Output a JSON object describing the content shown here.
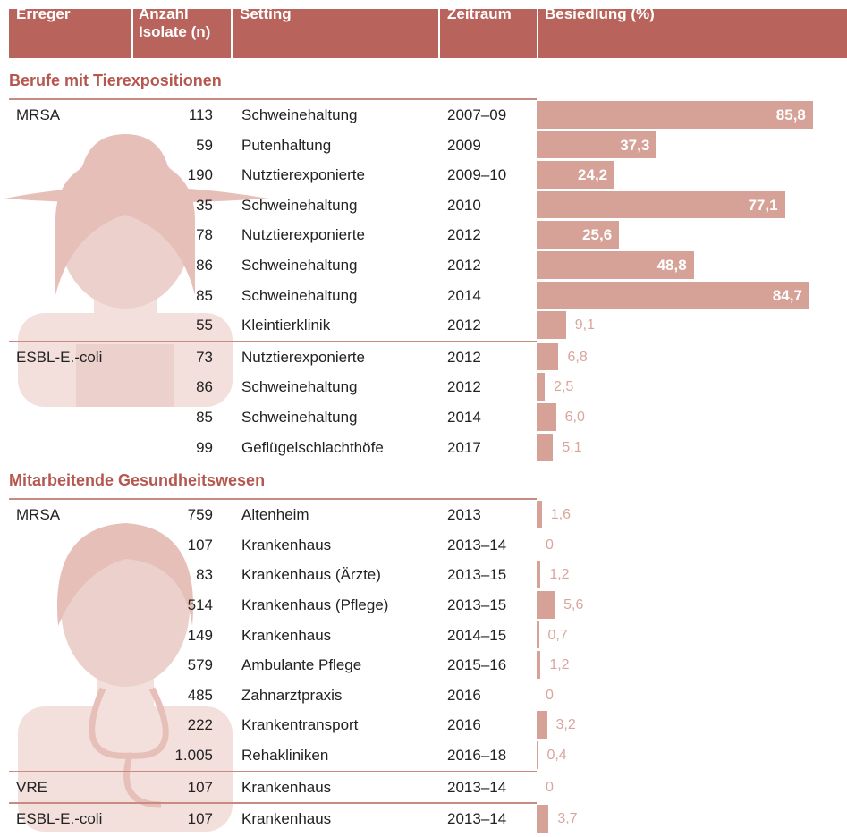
{
  "table": {
    "columns": [
      "Erreger",
      "Anzahl Isolate (n)",
      "Setting",
      "Zeitraum",
      "Besiedlung  (%)"
    ],
    "sections": [
      {
        "title": "Berufe mit Tierexpositionen",
        "groups": [
          {
            "pathogen": "MRSA",
            "rows": [
              {
                "n": "113",
                "setting": "Schweinehaltung",
                "period": "2007–09",
                "value": 85.8,
                "value_label": "85,8"
              },
              {
                "n": "59",
                "setting": "Putenhaltung",
                "period": "2009",
                "value": 37.3,
                "value_label": "37,3"
              },
              {
                "n": "190",
                "setting": "Nutztierexponierte",
                "period": "2009–10",
                "value": 24.2,
                "value_label": "24,2"
              },
              {
                "n": "35",
                "setting": "Schweinehaltung",
                "period": "2010",
                "value": 77.1,
                "value_label": "77,1"
              },
              {
                "n": "78",
                "setting": "Nutztierexponierte",
                "period": "2012",
                "value": 25.6,
                "value_label": "25,6"
              },
              {
                "n": "86",
                "setting": "Schweinehaltung",
                "period": "2012",
                "value": 48.8,
                "value_label": "48,8"
              },
              {
                "n": "85",
                "setting": "Schweinehaltung",
                "period": "2014",
                "value": 84.7,
                "value_label": "84,7"
              },
              {
                "n": "55",
                "setting": "Kleintierklinik",
                "period": "2012",
                "value": 9.1,
                "value_label": "9,1"
              }
            ]
          },
          {
            "pathogen": "ESBL-E.-coli",
            "rows": [
              {
                "n": "73",
                "setting": "Nutztierexponierte",
                "period": "2012",
                "value": 6.8,
                "value_label": "6,8"
              },
              {
                "n": "86",
                "setting": "Schweinehaltung",
                "period": "2012",
                "value": 2.5,
                "value_label": "2,5"
              },
              {
                "n": "85",
                "setting": "Schweinehaltung",
                "period": "2014",
                "value": 6.0,
                "value_label": "6,0"
              },
              {
                "n": "99",
                "setting": "Geflügelschlachthöfe",
                "period": "2017",
                "value": 5.1,
                "value_label": "5,1"
              }
            ]
          }
        ]
      },
      {
        "title": "Mitarbeitende Gesundheitswesen",
        "groups": [
          {
            "pathogen": "MRSA",
            "rows": [
              {
                "n": "759",
                "setting": "Altenheim",
                "period": "2013",
                "value": 1.6,
                "value_label": "1,6"
              },
              {
                "n": "107",
                "setting": "Krankenhaus",
                "period": "2013–14",
                "value": 0,
                "value_label": "0"
              },
              {
                "n": "83",
                "setting": "Krankenhaus (Ärzte)",
                "period": "2013–15",
                "value": 1.2,
                "value_label": "1,2"
              },
              {
                "n": "514",
                "setting": "Krankenhaus (Pflege)",
                "period": "2013–15",
                "value": 5.6,
                "value_label": "5,6"
              },
              {
                "n": "149",
                "setting": "Krankenhaus",
                "period": "2014–15",
                "value": 0.7,
                "value_label": "0,7"
              },
              {
                "n": "579",
                "setting": "Ambulante Pflege",
                "period": "2015–16",
                "value": 1.2,
                "value_label": "1,2"
              },
              {
                "n": "485",
                "setting": "Zahnarztpraxis",
                "period": "2016",
                "value": 0,
                "value_label": "0"
              },
              {
                "n": "222",
                "setting": "Krankentransport",
                "period": "2016",
                "value": 3.2,
                "value_label": "3,2"
              },
              {
                "n": "1.005",
                "setting": "Rehakliniken",
                "period": "2016–18",
                "value": 0.4,
                "value_label": "0,4"
              }
            ]
          },
          {
            "pathogen": "VRE",
            "rows": [
              {
                "n": "107",
                "setting": "Krankenhaus",
                "period": "2013–14",
                "value": 0,
                "value_label": "0"
              }
            ]
          },
          {
            "pathogen": "ESBL-E.-coli",
            "rows": [
              {
                "n": "107",
                "setting": "Krankenhaus",
                "period": "2013–14",
                "value": 3.7,
                "value_label": "3,7"
              }
            ]
          }
        ]
      }
    ]
  }
}
